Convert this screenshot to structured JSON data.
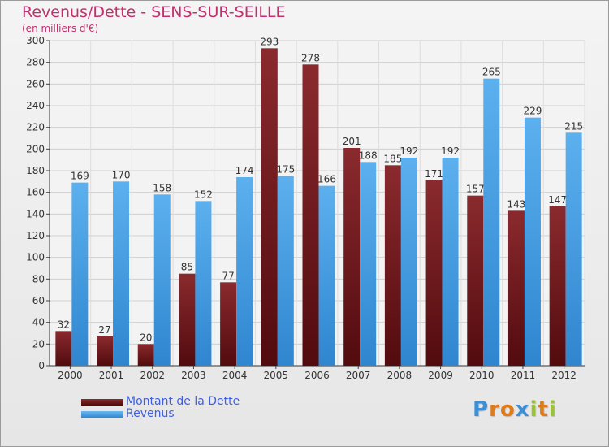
{
  "chart_data": {
    "type": "bar",
    "title": "Revenus/Dette - SENS-SUR-SEILLE",
    "subtitle": "(en milliers d'€)",
    "categories": [
      "2000",
      "2001",
      "2002",
      "2003",
      "2004",
      "2005",
      "2006",
      "2007",
      "2008",
      "2009",
      "2010",
      "2011",
      "2012"
    ],
    "series": [
      {
        "name": "Montant de la Dette",
        "color": "#6e1518",
        "values": [
          32,
          27,
          20,
          85,
          77,
          293,
          278,
          201,
          185,
          171,
          157,
          143,
          147
        ]
      },
      {
        "name": "Revenus",
        "color": "#4aa3e8",
        "values": [
          169,
          170,
          158,
          152,
          174,
          175,
          166,
          188,
          192,
          192,
          265,
          229,
          215
        ]
      }
    ],
    "ylim": [
      0,
      300
    ],
    "yticks": [
      0,
      20,
      40,
      60,
      80,
      100,
      120,
      140,
      160,
      180,
      200,
      220,
      240,
      260,
      280,
      300
    ],
    "grid": true,
    "legend_position": "bottom-left"
  },
  "logo": {
    "letters": [
      "P",
      "r",
      "o",
      "x",
      "i",
      "t",
      "i"
    ],
    "colors": [
      "#3d8fd6",
      "#e07b1a",
      "#e07b1a",
      "#3d8fd6",
      "#9bc23c",
      "#e07b1a",
      "#9bc23c"
    ]
  }
}
